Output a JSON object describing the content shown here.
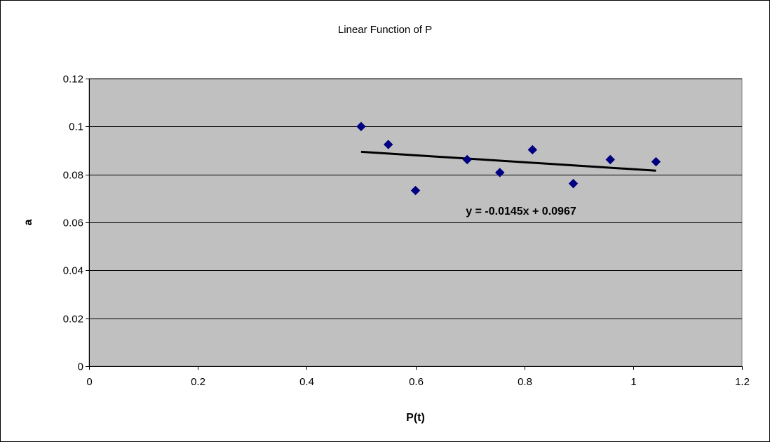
{
  "chart_data": {
    "type": "scatter",
    "title": "Linear Function of  P",
    "xlabel": "P(t)",
    "ylabel": "a",
    "xlim": [
      0,
      1.2
    ],
    "ylim": [
      0,
      0.12
    ],
    "x_ticks": [
      0,
      0.2,
      0.4,
      0.6,
      0.8,
      1,
      1.2
    ],
    "x_tick_labels": [
      "0",
      "0.2",
      "0.4",
      "0.6",
      "0.8",
      "1",
      "1.2"
    ],
    "y_ticks": [
      0,
      0.02,
      0.04,
      0.06,
      0.08,
      0.1,
      0.12
    ],
    "y_tick_labels": [
      "0",
      "0.02",
      "0.04",
      "0.06",
      "0.08",
      "0.1",
      "0.12"
    ],
    "grid": "horizontal major gridlines",
    "legend": "none",
    "series": [
      {
        "x": [
          0.5,
          0.55,
          0.6,
          0.695,
          0.755,
          0.815,
          0.89,
          0.958,
          1.042
        ],
        "y": [
          0.1,
          0.0925,
          0.0733,
          0.0862,
          0.0808,
          0.0903,
          0.0762,
          0.0862,
          0.0853
        ],
        "marker": "diamond",
        "color": "#000080"
      }
    ],
    "trendline": {
      "type": "linear",
      "slope": -0.0145,
      "intercept": 0.0967,
      "x_range": [
        0.5,
        1.042
      ],
      "color": "#000000",
      "equation_label": "y = -0.0145x + 0.0967"
    },
    "plot_background": "#C0C0C0",
    "grid_color": "#000000"
  }
}
